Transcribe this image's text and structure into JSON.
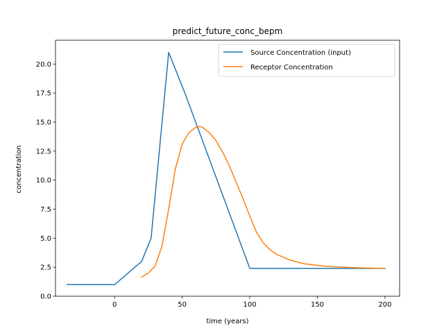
{
  "chart_data": {
    "type": "line",
    "title": "predict_future_conc_bepm",
    "xlabel": "time (years)",
    "ylabel": "concentration",
    "xlim": [
      -43.7,
      210.8
    ],
    "ylim": [
      0,
      22.05
    ],
    "xticks": [
      0,
      50,
      100,
      150,
      200
    ],
    "yticks": [
      0.0,
      2.5,
      5.0,
      7.5,
      10.0,
      12.5,
      15.0,
      17.5,
      20.0
    ],
    "xtick_labels": [
      "0",
      "50",
      "100",
      "150",
      "200"
    ],
    "ytick_labels": [
      "0.0",
      "2.5",
      "5.0",
      "7.5",
      "10.0",
      "12.5",
      "15.0",
      "17.5",
      "20.0"
    ],
    "grid": false,
    "legend_position": "top-right",
    "series": [
      {
        "name": "Source Concentration (input)",
        "color": "#1f77b4",
        "x": [
          -35,
          0,
          20,
          27,
          40,
          52,
          100,
          200
        ],
        "y": [
          1.0,
          1.0,
          3.0,
          5.0,
          21.0,
          17.5,
          2.4,
          2.4
        ]
      },
      {
        "name": "Receptor Concentration",
        "color": "#ff7f0e",
        "x": [
          20,
          25,
          30,
          35,
          40,
          45,
          50,
          55,
          60,
          63,
          65,
          70,
          75,
          80,
          85,
          90,
          95,
          100,
          105,
          110,
          115,
          120,
          130,
          140,
          150,
          160,
          170,
          180,
          190,
          200
        ],
        "y": [
          1.65,
          2.0,
          2.6,
          4.3,
          7.5,
          11.0,
          13.1,
          14.1,
          14.55,
          14.62,
          14.55,
          14.1,
          13.4,
          12.4,
          11.2,
          9.8,
          8.4,
          6.9,
          5.5,
          4.6,
          4.0,
          3.6,
          3.1,
          2.8,
          2.65,
          2.55,
          2.5,
          2.45,
          2.42,
          2.4
        ]
      }
    ]
  }
}
